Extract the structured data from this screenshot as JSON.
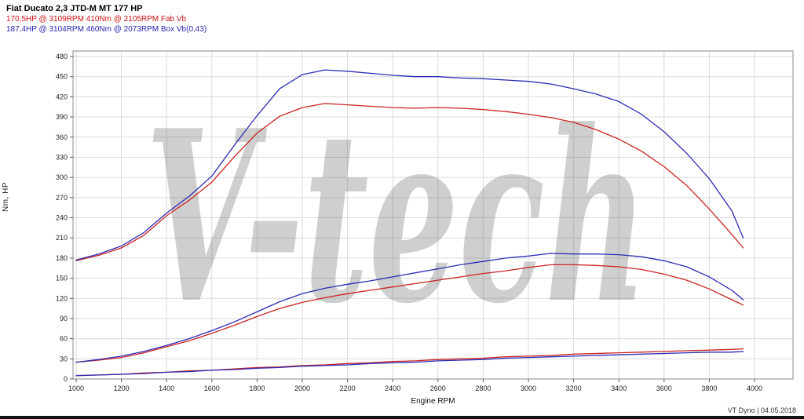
{
  "header": {
    "title": "Fiat Ducato 2,3 JTD-M MT 177 HP",
    "stock_line": "170,5HP @  3109RPM   410Nm @ 2105RPM   Fab Vb",
    "tuned_line": "187,4HP @  3104RPM   460Nm @ 2073RPM   Box Vb(0,43)",
    "stock_color": "#cc1111",
    "tuned_color": "#2424b2"
  },
  "axes": {
    "y_label": "Nm, HP",
    "x_label": "Engine RPM"
  },
  "footer": {
    "caption": "VT Dyno | 04.05.2018"
  },
  "chart_data": {
    "type": "line",
    "title": "Fiat Ducato 2,3 JTD-M MT 177 HP",
    "xlabel": "Engine RPM",
    "ylabel": "Nm, HP",
    "xlim": [
      1000,
      4000
    ],
    "ylim": [
      0,
      480
    ],
    "grid": true,
    "legend_position": "none",
    "watermark": "V-tech",
    "grid_color": "#dadada",
    "border_color": "#8a8a8a",
    "xticks": [
      1000,
      1200,
      1400,
      1600,
      1800,
      2000,
      2200,
      2400,
      2600,
      2800,
      3000,
      3200,
      3400,
      3600,
      3800,
      4000
    ],
    "yticks": [
      0,
      30,
      60,
      90,
      120,
      150,
      180,
      210,
      240,
      270,
      300,
      330,
      360,
      390,
      420,
      450,
      480
    ],
    "x": [
      1000,
      1100,
      1200,
      1300,
      1400,
      1500,
      1600,
      1700,
      1800,
      1900,
      2000,
      2100,
      2200,
      2300,
      2400,
      2500,
      2600,
      2700,
      2800,
      2900,
      3000,
      3100,
      3200,
      3300,
      3400,
      3500,
      3600,
      3700,
      3800,
      3900,
      3950
    ],
    "series": [
      {
        "id": "loss-stock",
        "name": "Drag/loss run stock (red)",
        "color": "#cc2222",
        "values": [
          5,
          6,
          7,
          9,
          10,
          12,
          13,
          15,
          17,
          18,
          20,
          21,
          23,
          24,
          26,
          27,
          29,
          30,
          31,
          33,
          34,
          35,
          37,
          38,
          39,
          40,
          41,
          42,
          43,
          44,
          45
        ]
      },
      {
        "id": "loss-tuned",
        "name": "Drag/loss run tuned (blue)",
        "color": "#2b2bb4",
        "values": [
          5,
          6,
          7,
          8,
          10,
          11,
          13,
          14,
          16,
          17,
          19,
          20,
          21,
          23,
          24,
          25,
          27,
          28,
          29,
          31,
          32,
          33,
          34,
          35,
          36,
          37,
          38,
          39,
          40,
          40,
          41
        ]
      },
      {
        "id": "power-stock",
        "name": "Power stock 170,5HP (red, HP)",
        "color": "#cc2222",
        "values": [
          25,
          28,
          32,
          39,
          48,
          57,
          68,
          80,
          93,
          105,
          114,
          121,
          127,
          132,
          137,
          142,
          147,
          152,
          157,
          161,
          166,
          170,
          170,
          169,
          167,
          163,
          156,
          147,
          134,
          118,
          110
        ]
      },
      {
        "id": "power-tuned",
        "name": "Power tuned 187,4HP (blue, HP)",
        "color": "#2b2bb4",
        "values": [
          25,
          29,
          34,
          41,
          50,
          60,
          72,
          85,
          100,
          115,
          127,
          135,
          141,
          146,
          152,
          158,
          164,
          170,
          175,
          180,
          183,
          187,
          186,
          186,
          185,
          182,
          176,
          167,
          152,
          132,
          118
        ]
      },
      {
        "id": "torque-stock",
        "name": "Torque stock 410Nm (red, Nm)",
        "color": "#cc2222",
        "values": [
          176,
          184,
          195,
          214,
          243,
          266,
          293,
          331,
          366,
          391,
          404,
          410,
          408,
          406,
          404,
          403,
          404,
          403,
          401,
          398,
          394,
          389,
          382,
          371,
          357,
          339,
          316,
          288,
          253,
          215,
          195
        ]
      },
      {
        "id": "torque-tuned",
        "name": "Torque tuned 460Nm (blue, Nm)",
        "color": "#2b2bb4",
        "values": [
          177,
          186,
          198,
          218,
          247,
          272,
          302,
          348,
          392,
          432,
          453,
          460,
          458,
          455,
          452,
          450,
          450,
          448,
          447,
          445,
          443,
          439,
          432,
          424,
          413,
          394,
          368,
          336,
          298,
          250,
          210
        ]
      }
    ]
  }
}
